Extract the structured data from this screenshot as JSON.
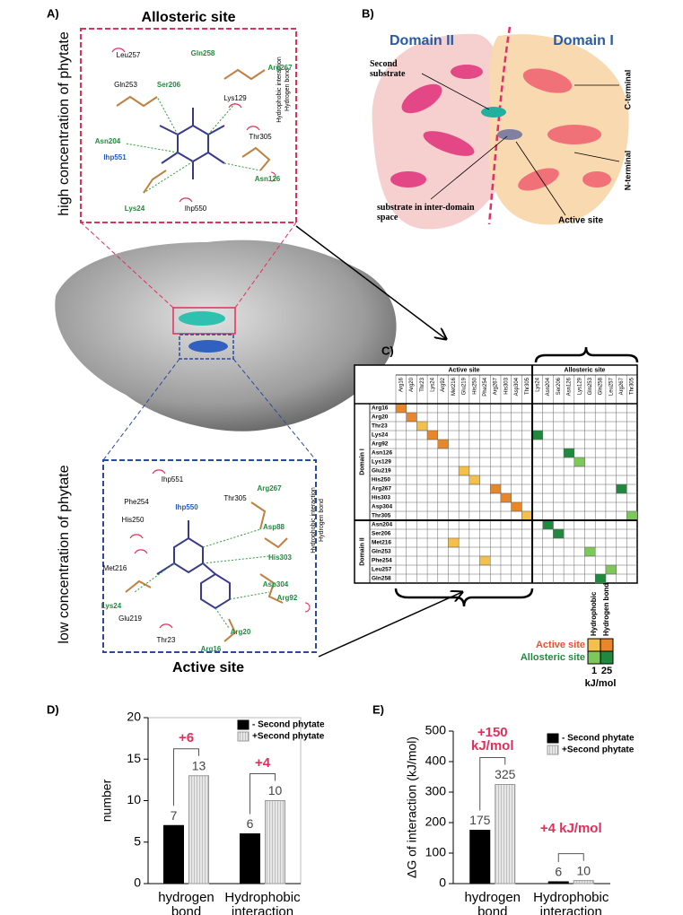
{
  "panel_labels": [
    "A)",
    "B)",
    "C)",
    "D)",
    "E)"
  ],
  "panel_a": {
    "allosteric_title": "Allosteric site",
    "active_title": "Active site",
    "high_label": "high concentration of phytate",
    "low_label": "low concentration of phytate",
    "legend": [
      "Hydrophobic interaction",
      "Hydrogen bond"
    ],
    "allosteric_residues": [
      "Leu257",
      "Gln258",
      "Arg267",
      "Gln253",
      "Ser206",
      "Lys129",
      "Asn204",
      "Thr305",
      "Ihp551",
      "Asn126",
      "Lys24",
      "Ihp550"
    ],
    "active_residues": [
      "Ihp551",
      "Ihp550",
      "Phe254",
      "Thr305",
      "Arg267",
      "His250",
      "Asp88",
      "Met216",
      "His303",
      "Lys24",
      "Glu219",
      "Asp304",
      "Arg92",
      "Thr23",
      "Arg20",
      "Arg16"
    ]
  },
  "panel_b": {
    "domain_2": "Domain II",
    "domain_1": "Domain I",
    "labels": [
      "Second substrate",
      "substrate in inter-domain space",
      "Active site",
      "C-terminal",
      "N-terminal"
    ]
  },
  "panel_c": {
    "active_header": "Active site",
    "allosteric_header": "Allosteric site",
    "columns": [
      "Arg16",
      "Arg20",
      "Thr23",
      "Lys24",
      "Arg92",
      "Met216",
      "Glu219",
      "His250",
      "Phe254",
      "Arg267",
      "His303",
      "Asp304",
      "Thr305",
      "Lys24",
      "Asn204",
      "Ser206",
      "Asn126",
      "Lys129",
      "Gln253",
      "Gln258",
      "Leu257",
      "Arg267",
      "Thr305"
    ],
    "active_column_count": 13,
    "domain_1": "Domain I",
    "domain_1_rows": [
      {
        "label": "Arg16",
        "hits": [
          {
            "col": 0,
            "color": "#e8862a"
          }
        ]
      },
      {
        "label": "Arg20",
        "hits": [
          {
            "col": 1,
            "color": "#e8862a"
          }
        ]
      },
      {
        "label": "Thr23",
        "hits": [
          {
            "col": 2,
            "color": "#f5c04a"
          }
        ]
      },
      {
        "label": "Lys24",
        "hits": [
          {
            "col": 3,
            "color": "#e8862a"
          },
          {
            "col": 13,
            "color": "#1f8a3e"
          }
        ]
      },
      {
        "label": "Arg92",
        "hits": [
          {
            "col": 4,
            "color": "#e8862a"
          }
        ]
      },
      {
        "label": "Asn126",
        "hits": [
          {
            "col": 16,
            "color": "#1f8a3e"
          }
        ]
      },
      {
        "label": "Lys129",
        "hits": [
          {
            "col": 17,
            "color": "#7cc85a"
          }
        ]
      },
      {
        "label": "Glu219",
        "hits": [
          {
            "col": 6,
            "color": "#f5c04a"
          }
        ]
      },
      {
        "label": "His250",
        "hits": [
          {
            "col": 7,
            "color": "#f5c04a"
          }
        ]
      },
      {
        "label": "Arg267",
        "hits": [
          {
            "col": 9,
            "color": "#e8862a"
          },
          {
            "col": 21,
            "color": "#1f8a3e"
          }
        ]
      },
      {
        "label": "His303",
        "hits": [
          {
            "col": 10,
            "color": "#e8862a"
          }
        ]
      },
      {
        "label": "Asp304",
        "hits": [
          {
            "col": 11,
            "color": "#e8862a"
          }
        ]
      },
      {
        "label": "Thr305",
        "hits": [
          {
            "col": 12,
            "color": "#f5c04a"
          },
          {
            "col": 22,
            "color": "#7cc85a"
          }
        ]
      }
    ],
    "domain_2": "Domain II",
    "domain_2_rows": [
      {
        "label": "Asn204",
        "hits": [
          {
            "col": 14,
            "color": "#1f8a3e"
          }
        ]
      },
      {
        "label": "Ser206",
        "hits": [
          {
            "col": 15,
            "color": "#1f8a3e"
          }
        ]
      },
      {
        "label": "Met216",
        "hits": [
          {
            "col": 5,
            "color": "#f5c04a"
          }
        ]
      },
      {
        "label": "Gln253",
        "hits": [
          {
            "col": 18,
            "color": "#7cc85a"
          }
        ]
      },
      {
        "label": "Phe254",
        "hits": [
          {
            "col": 8,
            "color": "#f5c04a"
          }
        ]
      },
      {
        "label": "Leu257",
        "hits": [
          {
            "col": 20,
            "color": "#7cc85a"
          }
        ]
      },
      {
        "label": "Gln258",
        "hits": [
          {
            "col": 19,
            "color": "#1f8a3e"
          }
        ]
      }
    ],
    "legend": {
      "kinds": [
        "Hydrophobic",
        "Hydrogen bond"
      ],
      "sites": [
        "Active site",
        "Allosteric site"
      ],
      "site_colors": [
        "#e8503a",
        "#1f8a3e"
      ],
      "colors": [
        [
          "#f5c04a",
          "#e8862a"
        ],
        [
          "#7cc85a",
          "#1f8a3e"
        ]
      ],
      "scale": [
        1,
        25
      ],
      "unit": "kJ/mol"
    }
  },
  "chart_data": [
    {
      "type": "bar",
      "ylabel": "number",
      "categories": [
        "hydrogen bond",
        "Hydrophobic interaction"
      ],
      "series": [
        {
          "name": "- Second phytate",
          "color": "#000000",
          "values": [
            7,
            6
          ]
        },
        {
          "name": "+Second phytate",
          "color": "#bdbdbd",
          "hatch": true,
          "values": [
            13,
            10
          ]
        }
      ],
      "ylim": [
        0,
        20
      ],
      "yticks": [
        0,
        5,
        10,
        15,
        20
      ],
      "annotations": [
        "+6",
        "+4"
      ],
      "legend": "upper right"
    },
    {
      "type": "bar",
      "ylabel": "ΔG of interaction (kJ/mol)",
      "categories": [
        "hydrogen bond",
        "Hydrophobic interaction"
      ],
      "series": [
        {
          "name": "- Second phytate",
          "color": "#000000",
          "values": [
            175,
            6
          ]
        },
        {
          "name": "+Second phytate",
          "color": "#bdbdbd",
          "hatch": true,
          "values": [
            325,
            10
          ]
        }
      ],
      "ylim": [
        0,
        500
      ],
      "yticks": [
        0,
        100,
        200,
        300,
        400,
        500
      ],
      "annotations": [
        "+150 kJ/mol",
        "+4 kJ/mol"
      ],
      "legend": "upper right"
    }
  ]
}
